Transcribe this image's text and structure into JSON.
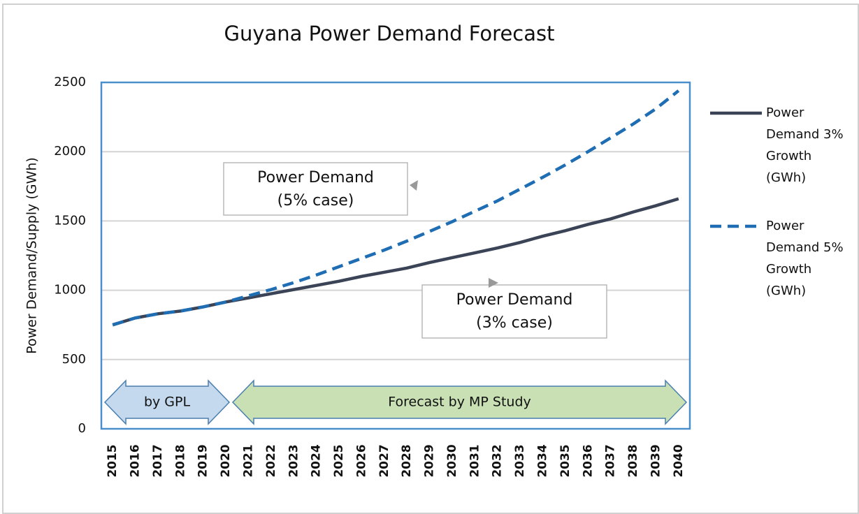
{
  "chart_data": {
    "type": "line",
    "title": "Guyana Power Demand Forecast",
    "y_label": "Power Demand/Supply (GWh)",
    "categories": [
      "2015",
      "2016",
      "2017",
      "2018",
      "2019",
      "2020",
      "2021",
      "2022",
      "2023",
      "2024",
      "2025",
      "2026",
      "2027",
      "2028",
      "2029",
      "2030",
      "2031",
      "2032",
      "2033",
      "2034",
      "2035",
      "2036",
      "2037",
      "2038",
      "2039",
      "2040"
    ],
    "series": [
      {
        "name": "Power Demand 3% Growth (GWh)",
        "color": "#3b4456",
        "dash": false,
        "values": [
          750,
          800,
          830,
          850,
          880,
          915,
          945,
          975,
          1005,
          1035,
          1065,
          1100,
          1130,
          1160,
          1200,
          1235,
          1270,
          1305,
          1345,
          1390,
          1430,
          1475,
          1515,
          1565,
          1610,
          1660
        ]
      },
      {
        "name": "Power Demand 5% Growth (GWh)",
        "color": "#1f6db3",
        "dash": true,
        "values": [
          750,
          800,
          830,
          850,
          880,
          915,
          960,
          1005,
          1055,
          1110,
          1170,
          1230,
          1290,
          1355,
          1425,
          1495,
          1570,
          1645,
          1730,
          1815,
          1905,
          2000,
          2100,
          2200,
          2310,
          2440
        ]
      }
    ],
    "ylim": [
      0,
      2500
    ],
    "yticks": [
      0,
      500,
      1000,
      1500,
      2000,
      2500
    ],
    "grid": true,
    "legend": "right",
    "annotations": [
      {
        "lines": [
          "Power Demand",
          "(5% case)"
        ]
      },
      {
        "lines": [
          "Power Demand",
          "(3% case)"
        ]
      }
    ],
    "regions": [
      {
        "label": "by GPL",
        "color": "#c5d9ee"
      },
      {
        "label": "Forecast by MP Study",
        "color": "#c8e0b4"
      }
    ]
  }
}
